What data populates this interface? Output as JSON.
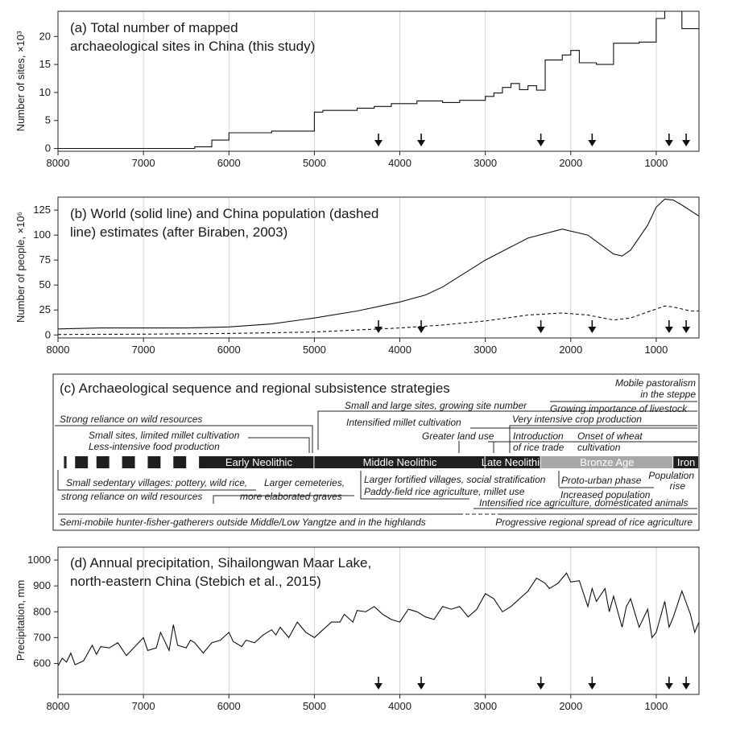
{
  "x_ticks": [
    "8000",
    "7000",
    "6000",
    "5000",
    "4000",
    "3000",
    "2000",
    "1000"
  ],
  "arrow_years": [
    4250,
    3750,
    2350,
    1750,
    850,
    650
  ],
  "colors": {
    "ink": "#111111",
    "grid": "#d4d4d4",
    "bar_dark": "#1f1f1f",
    "bar_bronze": "#a8a8a8"
  },
  "chart_data": [
    {
      "id": "a",
      "type": "line",
      "title_line1": "(a) Total number of mapped",
      "title_line2": "archaeological sites in China (this study)",
      "ylabel": "Number of sites, ×10³",
      "y_ticks": [
        "0",
        "5",
        "10",
        "15",
        "20"
      ],
      "xlim": [
        8000,
        500
      ],
      "ylim": [
        -0.5,
        24.5
      ],
      "step": true,
      "x": [
        8000,
        6400,
        6200,
        6000,
        5500,
        5000,
        4900,
        4500,
        4300,
        4100,
        3800,
        3500,
        3300,
        3000,
        2900,
        2800,
        2700,
        2600,
        2500,
        2400,
        2300,
        2100,
        2000,
        1900,
        1700,
        1500,
        1200,
        1000,
        900,
        700,
        500
      ],
      "y": [
        0,
        0.3,
        1.5,
        2.8,
        3.1,
        6.5,
        6.8,
        7.2,
        7.5,
        8.0,
        8.5,
        8.2,
        8.6,
        9.3,
        9.9,
        10.9,
        11.6,
        10.5,
        11.2,
        10.4,
        15.8,
        16.7,
        17.5,
        15.3,
        15.0,
        18.8,
        19.0,
        23.2,
        24.5,
        21.4,
        21.2
      ]
    },
    {
      "id": "b",
      "type": "line",
      "title_line1": "(b) World (solid line) and China population (dashed",
      "title_line2": "line) estimates (after Biraben, 2003)",
      "ylabel": "Number of people, ×10⁶",
      "y_ticks": [
        "0",
        "25",
        "50",
        "75",
        "100",
        "125"
      ],
      "xlim": [
        8000,
        500
      ],
      "ylim": [
        -3,
        138
      ],
      "series": [
        {
          "style": "solid",
          "x": [
            8000,
            7500,
            7000,
            6500,
            6000,
            5500,
            5000,
            4500,
            4000,
            3700,
            3500,
            3000,
            2500,
            2100,
            1800,
            1500,
            1400,
            1300,
            1100,
            1000,
            900,
            800,
            700,
            500
          ],
          "y": [
            6,
            7,
            7,
            7,
            8,
            11,
            17,
            24,
            33,
            40,
            48,
            75,
            97,
            106,
            100,
            81,
            79,
            85,
            110,
            128,
            136,
            135,
            130,
            119
          ]
        },
        {
          "style": "dashed",
          "x": [
            8000,
            7000,
            6000,
            5000,
            4500,
            4000,
            3500,
            3000,
            2500,
            2100,
            1800,
            1500,
            1300,
            1100,
            900,
            800,
            600,
            500
          ],
          "y": [
            0.5,
            0.8,
            1.5,
            3,
            5,
            7,
            10,
            14,
            20,
            22,
            20,
            15,
            17,
            23,
            29,
            28,
            24,
            24
          ]
        }
      ]
    },
    {
      "id": "d",
      "type": "line",
      "title_line1": "(d) Annual precipitation, Sihailongwan Maar Lake,",
      "title_line2": "north-eastern China (Stebich et al., 2015)",
      "ylabel": "Precipitation, mm",
      "y_ticks": [
        "600",
        "700",
        "800",
        "900",
        "1000"
      ],
      "xlim": [
        8000,
        500
      ],
      "ylim": [
        480,
        1050
      ],
      "x": [
        8000,
        7950,
        7900,
        7850,
        7800,
        7700,
        7600,
        7550,
        7500,
        7400,
        7300,
        7200,
        7100,
        7000,
        6950,
        6850,
        6800,
        6700,
        6650,
        6600,
        6500,
        6450,
        6400,
        6300,
        6200,
        6100,
        6000,
        5950,
        5850,
        5800,
        5700,
        5600,
        5500,
        5450,
        5400,
        5300,
        5200,
        5100,
        5000,
        4900,
        4800,
        4700,
        4650,
        4550,
        4500,
        4400,
        4300,
        4200,
        4100,
        4000,
        3900,
        3800,
        3700,
        3600,
        3500,
        3400,
        3300,
        3200,
        3100,
        3000,
        2900,
        2800,
        2700,
        2600,
        2500,
        2400,
        2350,
        2300,
        2250,
        2200,
        2150,
        2100,
        2050,
        2000,
        1900,
        1800,
        1750,
        1700,
        1600,
        1550,
        1500,
        1400,
        1350,
        1300,
        1200,
        1100,
        1050,
        1000,
        900,
        850,
        800,
        700,
        600,
        550,
        500
      ],
      "y": [
        590,
        620,
        605,
        640,
        595,
        610,
        670,
        635,
        665,
        660,
        680,
        630,
        665,
        700,
        650,
        660,
        720,
        650,
        750,
        670,
        660,
        690,
        680,
        640,
        680,
        690,
        720,
        685,
        665,
        690,
        680,
        710,
        730,
        710,
        740,
        700,
        760,
        720,
        700,
        730,
        760,
        760,
        790,
        760,
        805,
        800,
        820,
        790,
        770,
        760,
        810,
        800,
        780,
        770,
        820,
        810,
        820,
        780,
        810,
        870,
        850,
        800,
        820,
        850,
        880,
        930,
        920,
        910,
        890,
        900,
        910,
        930,
        950,
        915,
        920,
        820,
        890,
        840,
        890,
        800,
        860,
        740,
        820,
        850,
        740,
        810,
        700,
        720,
        840,
        740,
        780,
        880,
        790,
        720,
        760
      ]
    }
  ],
  "panel_c": {
    "title": "(c) Archaeological sequence and regional subsistence strategies",
    "periods": [
      {
        "label": "Early Neolithic",
        "start": 6300,
        "end": 5000,
        "tone": "dark"
      },
      {
        "label": "Middle Neolithic",
        "start": 5000,
        "end": 3000,
        "tone": "dark"
      },
      {
        "label": "Late Neolithic",
        "start": 3000,
        "end": 2350,
        "tone": "dark"
      },
      {
        "label": "Bronze Age",
        "start": 2350,
        "end": 800,
        "tone": "bronze"
      },
      {
        "label": "Iron",
        "start": 800,
        "end": 500,
        "tone": "dark"
      }
    ],
    "preneolithic_blocks": [
      [
        7930,
        7900
      ],
      [
        7800,
        7650
      ],
      [
        7550,
        7400
      ],
      [
        7250,
        7100
      ],
      [
        6950,
        6800
      ],
      [
        6650,
        6500
      ],
      [
        6350,
        6200
      ]
    ],
    "notes_above": [
      "Mobile pastoralism",
      "in the steppe",
      "Small and large sites, growing site number",
      "Growing importance of livestock",
      "Strong reliance on wild resources",
      "Intensified millet cultivation",
      "Very intensive crop production",
      "Small sites, limited millet cultivation",
      "Greater land use",
      "Introduction",
      "Onset of wheat",
      "Less-intensive food production",
      "of rice trade",
      "cultivation"
    ],
    "notes_below": [
      "Small sedentary villages: pottery, wild rice,",
      "Larger cemeteries,",
      "Larger fortified villages, social stratification",
      "Proto-urban phase",
      "Population",
      "rise",
      "strong reliance on wild resources",
      "more elaborated graves",
      "Paddy-field rice agriculture, millet use",
      "Increased population",
      "Intensified rice agriculture, domesticated animals",
      "Semi-mobile hunter-fisher-gatherers  outside Middle/Low Yangtze and in the highlands",
      "Progressive regional spread of rice agriculture"
    ]
  }
}
